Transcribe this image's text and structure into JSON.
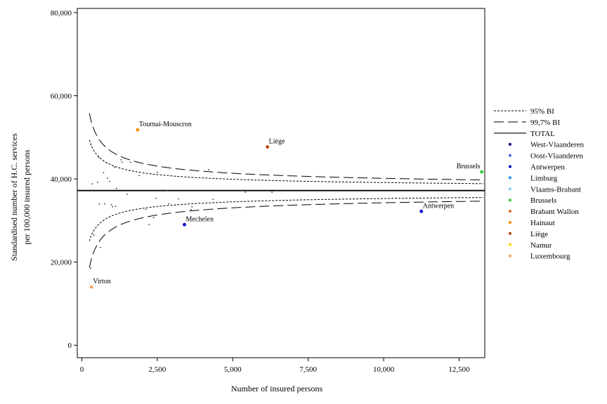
{
  "chart_data": {
    "type": "scatter",
    "title": "",
    "xlabel": "Number of insured persons",
    "ylabel": [
      "Standardised number of H.C. services",
      "per 100,000 insured persons"
    ],
    "xlim": [
      -150,
      13350
    ],
    "ylim": [
      -3000,
      81000
    ],
    "x_ticks": [
      {
        "value": 0,
        "label": "0"
      },
      {
        "value": 2500,
        "label": "2,500"
      },
      {
        "value": 5000,
        "label": "5,000"
      },
      {
        "value": 7500,
        "label": "7,500"
      },
      {
        "value": 10000,
        "label": "10,000"
      },
      {
        "value": 12500,
        "label": "12,500"
      }
    ],
    "y_ticks": [
      {
        "value": 0,
        "label": "0"
      },
      {
        "value": 20000,
        "label": "20,000"
      },
      {
        "value": 40000,
        "label": "40,000"
      },
      {
        "value": 60000,
        "label": "60,000"
      },
      {
        "value": 80000,
        "label": "80,000"
      }
    ],
    "grid": false,
    "legend_position": "right",
    "total_line": {
      "legend": "TOTAL",
      "y": 37200
    },
    "limits": {
      "total": 37200,
      "scale": 98000,
      "x_start": 250,
      "x_end": 13300,
      "bands": [
        {
          "legend": "95% BI",
          "z": 1.96,
          "dash": "3,2"
        },
        {
          "legend": "99,7% BI",
          "z": 3.0,
          "dash": "14,6"
        }
      ]
    },
    "series": [
      {
        "name": "West-Vlaanderen",
        "color": "#00008b"
      },
      {
        "name": "Oost-Vlaanderen",
        "color": "#4169e1"
      },
      {
        "name": "Antwerpen",
        "color": "#0000cd"
      },
      {
        "name": "Limburg",
        "color": "#1e90ff"
      },
      {
        "name": "Vlaams-Brabant",
        "color": "#87cefa"
      },
      {
        "name": "Brussels",
        "color": "#32cd32"
      },
      {
        "name": "Brabant Wallon",
        "color": "#d2691e"
      },
      {
        "name": "Hainaut",
        "color": "#ff8c00"
      },
      {
        "name": "Liège",
        "color": "#b8470b"
      },
      {
        "name": "Namur",
        "color": "#ffd700"
      },
      {
        "name": "Luxembourg",
        "color": "#f4a460"
      }
    ],
    "labeled_points": [
      {
        "label": "Tournai-Mouscron",
        "x": 1850,
        "y": 51800,
        "series": "Hainaut"
      },
      {
        "label": "Liège",
        "x": 6150,
        "y": 47700,
        "series": "Liège"
      },
      {
        "label": "Brussels",
        "x": 13250,
        "y": 41700,
        "series": "Brussels"
      },
      {
        "label": "Antwerpen",
        "x": 11250,
        "y": 32200,
        "series": "Antwerpen"
      },
      {
        "label": "Mechelen",
        "x": 3400,
        "y": 29000,
        "series": "Antwerpen"
      },
      {
        "label": "Virton",
        "x": 320,
        "y": 14000,
        "series": "Luxembourg"
      }
    ],
    "points": [
      {
        "x": 300,
        "y": 18500
      },
      {
        "x": 350,
        "y": 38800
      },
      {
        "x": 400,
        "y": 26500
      },
      {
        "x": 520,
        "y": 39200
      },
      {
        "x": 560,
        "y": 45200
      },
      {
        "x": 580,
        "y": 34000
      },
      {
        "x": 620,
        "y": 23500
      },
      {
        "x": 720,
        "y": 41500
      },
      {
        "x": 760,
        "y": 34000
      },
      {
        "x": 850,
        "y": 40200
      },
      {
        "x": 920,
        "y": 39400
      },
      {
        "x": 980,
        "y": 33800
      },
      {
        "x": 1020,
        "y": 33300
      },
      {
        "x": 1080,
        "y": 42800
      },
      {
        "x": 1120,
        "y": 33400
      },
      {
        "x": 1150,
        "y": 37700
      },
      {
        "x": 1300,
        "y": 44600
      },
      {
        "x": 1330,
        "y": 44000
      },
      {
        "x": 1500,
        "y": 36300
      },
      {
        "x": 1620,
        "y": 44000
      },
      {
        "x": 1900,
        "y": 40800
      },
      {
        "x": 2120,
        "y": 32700
      },
      {
        "x": 2230,
        "y": 29000
      },
      {
        "x": 2380,
        "y": 30700
      },
      {
        "x": 2460,
        "y": 35300
      },
      {
        "x": 2500,
        "y": 41600
      },
      {
        "x": 2830,
        "y": 37200
      },
      {
        "x": 2880,
        "y": 34000
      },
      {
        "x": 3100,
        "y": 33700
      },
      {
        "x": 3200,
        "y": 35200
      },
      {
        "x": 3620,
        "y": 32600
      },
      {
        "x": 3650,
        "y": 33300
      },
      {
        "x": 4200,
        "y": 42200
      },
      {
        "x": 4350,
        "y": 35100
      },
      {
        "x": 5420,
        "y": 36800
      },
      {
        "x": 6300,
        "y": 36800
      }
    ]
  }
}
